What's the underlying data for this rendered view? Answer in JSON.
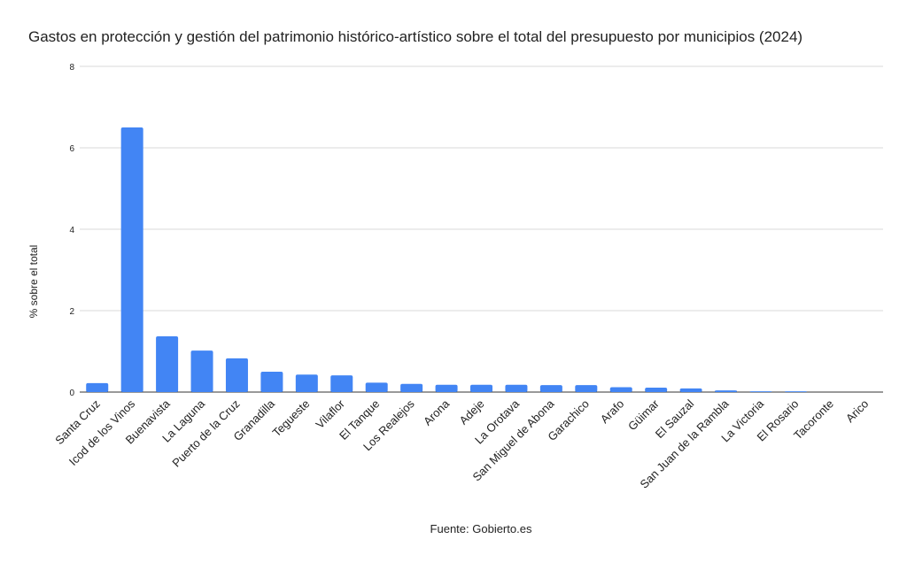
{
  "chart_data": {
    "type": "bar",
    "title": "Gastos en protección y gestión del patrimonio histórico-artístico sobre el total del presupuesto por municipios (2024)",
    "xlabel": "Fuente: Gobierto.es",
    "ylabel": "% sobre el total",
    "ylim": [
      0,
      8
    ],
    "yticks": [
      0,
      2,
      4,
      6,
      8
    ],
    "grid": true,
    "color": "#4285f4",
    "categories": [
      "Santa Cruz",
      "Icod de los Vinos",
      "Buenavista",
      "La Laguna",
      "Puerto de la Cruz",
      "Granadilla",
      "Tegueste",
      "Vilaflor",
      "El Tanque",
      "Los Realejos",
      "Arona",
      "Adeje",
      "La Orotava",
      "San Miguel de Abona",
      "Garachico",
      "Arafo",
      "Güimar",
      "El Sauzal",
      "San Juan de la Rambla",
      "La Victoria",
      "El Rosario",
      "Tacoronte",
      "Arico"
    ],
    "values": [
      0.22,
      6.5,
      1.37,
      1.02,
      0.83,
      0.5,
      0.43,
      0.41,
      0.23,
      0.2,
      0.18,
      0.18,
      0.18,
      0.17,
      0.17,
      0.12,
      0.11,
      0.09,
      0.04,
      0.02,
      0.02,
      0,
      0
    ]
  }
}
